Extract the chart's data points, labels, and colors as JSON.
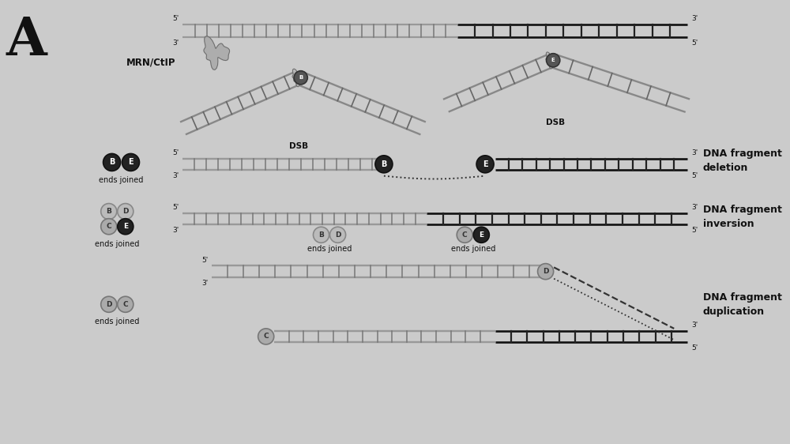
{
  "bg_color": "#cbcbcb",
  "strand_light_rail": "#999999",
  "strand_light_rung": "#777777",
  "strand_dark_rail": "#111111",
  "strand_dark_rung": "#222222",
  "strand_mid_rail": "#888888",
  "strand_mid_rung": "#666666",
  "circle_dark_face": "#222222",
  "circle_dark_edge": "#111111",
  "circle_dark_text": "#ffffff",
  "circle_light_face": "#bbbbbb",
  "circle_light_edge": "#888888",
  "circle_light_text": "#333333",
  "circle_gray_face": "#aaaaaa",
  "circle_gray_edge": "#777777",
  "text_color": "#111111",
  "label_MRN": "MRN/CtIP",
  "label_DSB": "DSB",
  "label_ends_joined": "ends joined",
  "label_deletion": "DNA fragment\ndeletion",
  "label_inversion": "DNA fragment\ninversion",
  "label_duplication": "DNA fragment\nduplication"
}
